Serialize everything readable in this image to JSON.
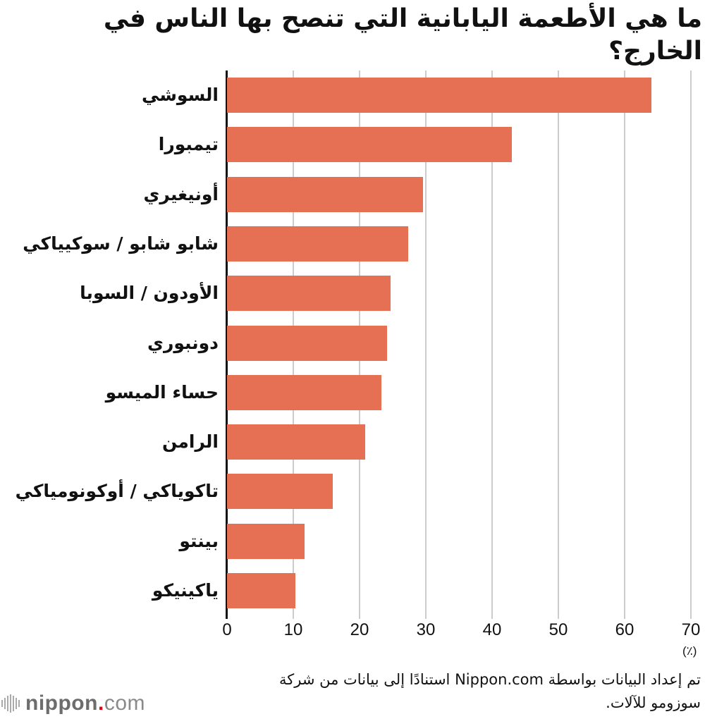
{
  "title": "ما هي الأطعمة اليابانية التي تنصح بها الناس في الخارج؟",
  "colors": {
    "bar": "#e57053",
    "grid": "#cccccc",
    "axis": "#111111",
    "logo_dot": "#e60012"
  },
  "chart_data": {
    "type": "bar",
    "orientation": "horizontal",
    "title": "ما هي الأطعمة اليابانية التي تنصح بها الناس في الخارج؟",
    "categories": [
      "السوشي",
      "تيمبورا",
      "أونيغيري",
      "شابو شابو / سوكيياكي",
      "الأودون / السوبا",
      "دونبوري",
      "حساء الميسو",
      "الرامن",
      "تاكوياكي / أوكونومياكي",
      "بينتو",
      "ياكينيكو"
    ],
    "values": [
      64.0,
      43.0,
      29.6,
      27.3,
      24.7,
      24.2,
      23.3,
      20.8,
      16.0,
      11.7,
      10.3
    ],
    "xlabel": "(٪)",
    "ylabel": "",
    "xlim": [
      0,
      70
    ],
    "xticks": [
      "0",
      "10",
      "20",
      "30",
      "40",
      "50",
      "60",
      "70"
    ],
    "grid": true,
    "legend": null
  },
  "axis": {
    "unit": "(٪)",
    "ticks": [
      "0",
      "10",
      "20",
      "30",
      "40",
      "50",
      "60",
      "70"
    ]
  },
  "source": {
    "line1": "تم إعداد البيانات بواسطة Nippon.com استنادًا إلى بيانات من شركة",
    "line2": "سوزومو للآلات."
  },
  "logo": {
    "name": "nippon",
    "dot": ".",
    "suffix": "com"
  }
}
